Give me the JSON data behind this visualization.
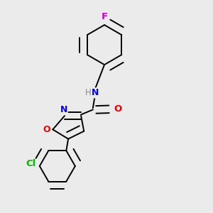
{
  "background_color": "#ebebeb",
  "bond_color": "#000000",
  "atom_colors": {
    "F": "#cc00cc",
    "N": "#0000ee",
    "H": "#888888",
    "O": "#ee0000",
    "Cl": "#00bb00",
    "C": "#000000"
  },
  "figsize": [
    3.0,
    3.0
  ],
  "dpi": 100
}
